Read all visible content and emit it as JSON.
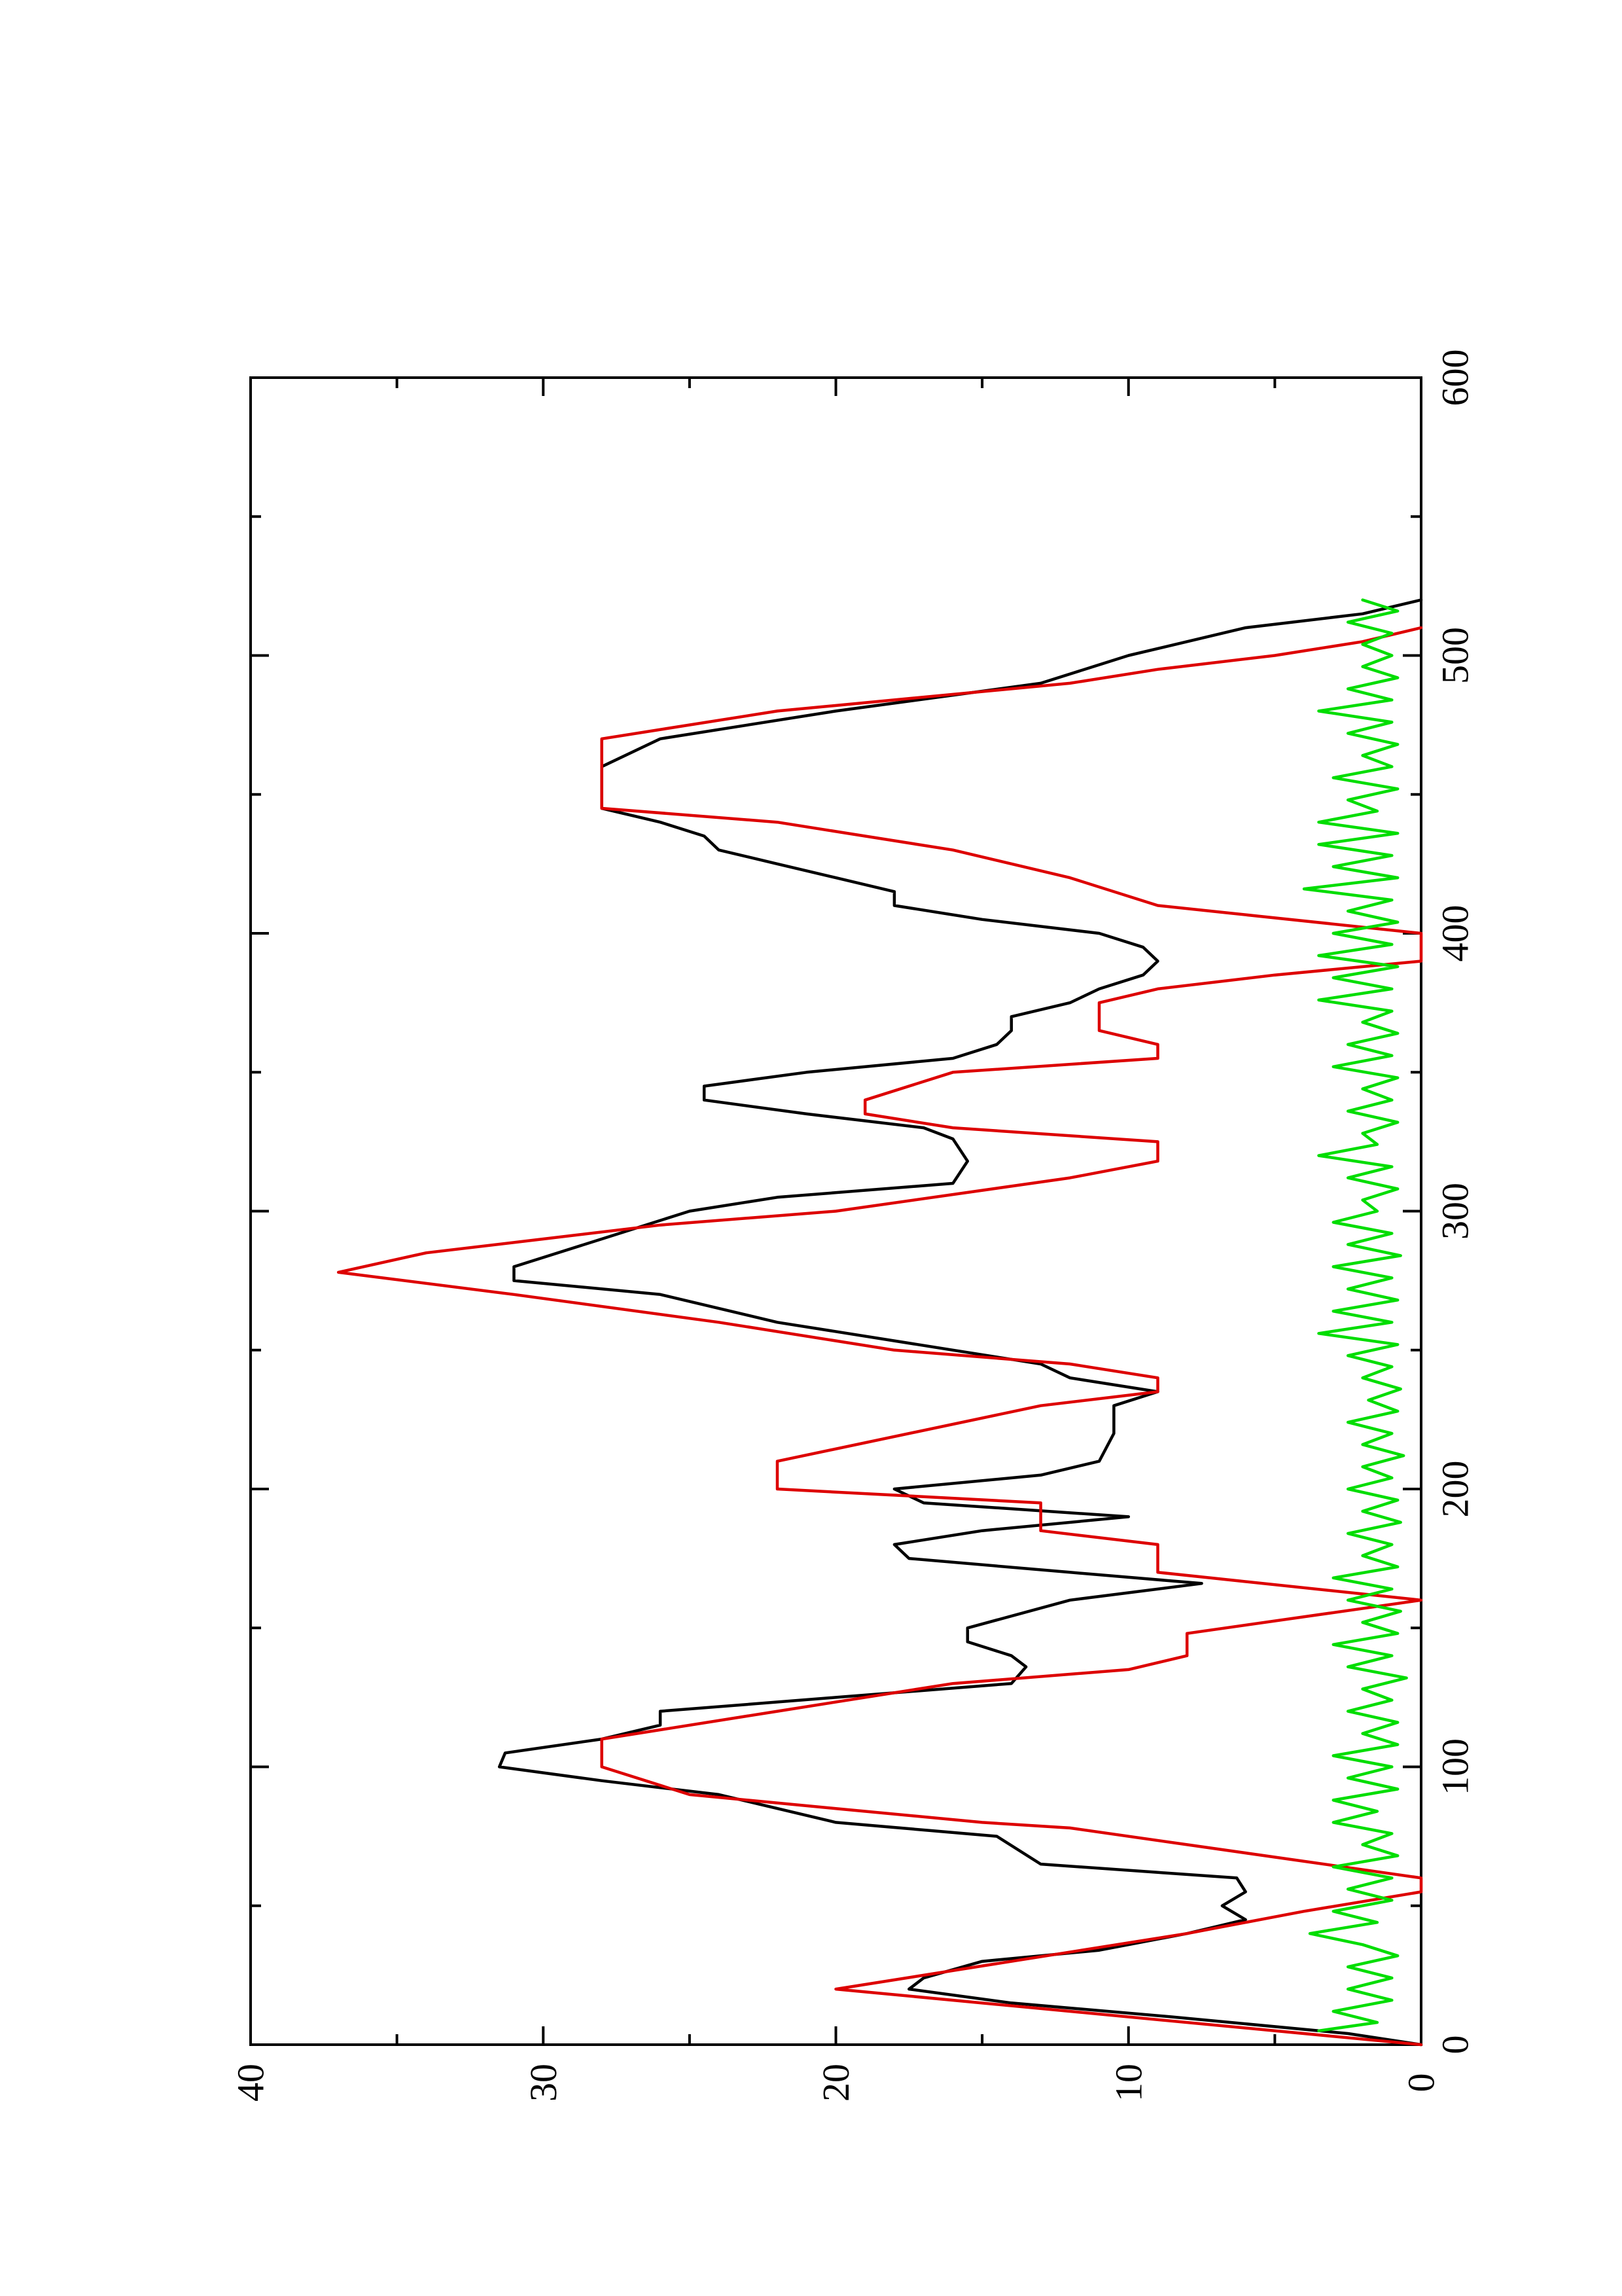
{
  "chart_data": {
    "type": "line",
    "title": "",
    "xlabel": "",
    "ylabel": "",
    "xlim": [
      0,
      600
    ],
    "ylim": [
      0,
      40
    ],
    "grid": false,
    "legend": "none",
    "orientation": "rotated-90-ccw",
    "x_ticks": [
      "0",
      "100",
      "200",
      "300",
      "400",
      "500",
      "600"
    ],
    "y_ticks": [
      "0",
      "10",
      "20",
      "30",
      "40"
    ],
    "colors": {
      "axis": "#000000",
      "series_black": "#000000",
      "series_red": "#dd0000",
      "series_green": "#00dd00"
    },
    "series": [
      {
        "color": "#000000",
        "x": [
          0,
          4,
          10,
          15,
          20,
          24,
          30,
          34,
          40,
          45,
          50,
          55,
          60,
          62,
          65,
          75,
          80,
          90,
          95,
          100,
          105,
          110,
          115,
          120,
          125,
          130,
          136,
          140,
          145,
          150,
          160,
          166,
          170,
          175,
          180,
          185,
          190,
          195,
          200,
          205,
          210,
          220,
          230,
          235,
          240,
          245,
          250,
          260,
          270,
          275,
          280,
          290,
          300,
          305,
          310,
          318,
          326,
          330,
          335,
          340,
          345,
          350,
          355,
          360,
          365,
          370,
          375,
          380,
          385,
          390,
          395,
          400,
          405,
          410,
          415,
          420,
          425,
          430,
          435,
          440,
          445,
          450,
          460,
          470,
          480,
          490,
          500,
          510,
          515,
          520
        ],
        "y": [
          0,
          2.5,
          8.5,
          14,
          17.5,
          17,
          15,
          11,
          8,
          6,
          6.8,
          6,
          6.3,
          9,
          13,
          14.5,
          20,
          24,
          28,
          31.5,
          31.3,
          28,
          26,
          26,
          20,
          14,
          13.5,
          14,
          15.5,
          15.5,
          12,
          7.5,
          12,
          17.5,
          18,
          15,
          10,
          17,
          18,
          13,
          11,
          10.5,
          10.5,
          9,
          12,
          13,
          16,
          22,
          26,
          31,
          31,
          28,
          25,
          22,
          16,
          15.5,
          16,
          17,
          21,
          24.5,
          24.5,
          21,
          16,
          14.5,
          14,
          14,
          12,
          11,
          9.5,
          9,
          9.5,
          11,
          15,
          18,
          18,
          20,
          22,
          24,
          24.5,
          26,
          28,
          28,
          28,
          26,
          20,
          13,
          10,
          6,
          2,
          0
        ]
      },
      {
        "color": "#dd0000",
        "x": [
          0,
          20,
          40,
          48,
          55,
          60,
          72,
          78,
          80,
          85,
          90,
          100,
          110,
          120,
          130,
          135,
          140,
          148,
          160,
          170,
          180,
          185,
          195,
          200,
          210,
          230,
          235,
          240,
          245,
          250,
          260,
          270,
          278,
          285,
          290,
          295,
          300,
          312,
          318,
          325,
          330,
          335,
          340,
          350,
          355,
          360,
          365,
          375,
          380,
          385,
          390,
          400,
          410,
          420,
          430,
          440,
          445,
          450,
          470,
          480,
          490,
          495,
          500,
          505,
          510
        ],
        "y": [
          0,
          20,
          8,
          4,
          0,
          0,
          8,
          12,
          15,
          20,
          25,
          28,
          28,
          22,
          16,
          10,
          8,
          8,
          0,
          9,
          9,
          13,
          13,
          22,
          22,
          13,
          9,
          9,
          12,
          18,
          24,
          31,
          37,
          34,
          30,
          26,
          20,
          12,
          9,
          9,
          16,
          19,
          19,
          16,
          9,
          9,
          11,
          11,
          9,
          5,
          0,
          0,
          9,
          12,
          16,
          22,
          28,
          28,
          28,
          22,
          12,
          9,
          5,
          2,
          0
        ]
      },
      {
        "color": "#00dd00",
        "x": [
          5,
          8,
          12,
          16,
          20,
          24,
          28,
          32,
          36,
          40,
          44,
          48,
          52,
          56,
          60,
          64,
          68,
          72,
          76,
          80,
          84,
          88,
          92,
          96,
          100,
          104,
          108,
          112,
          116,
          120,
          124,
          128,
          132,
          136,
          140,
          144,
          148,
          152,
          156,
          160,
          164,
          168,
          172,
          176,
          180,
          184,
          188,
          192,
          196,
          200,
          204,
          208,
          212,
          216,
          220,
          224,
          228,
          232,
          236,
          240,
          244,
          248,
          252,
          256,
          260,
          264,
          268,
          272,
          276,
          280,
          284,
          288,
          292,
          296,
          300,
          304,
          308,
          312,
          316,
          320,
          324,
          328,
          332,
          336,
          340,
          344,
          348,
          352,
          356,
          360,
          364,
          368,
          372,
          376,
          380,
          384,
          388,
          392,
          396,
          400,
          404,
          408,
          412,
          416,
          420,
          424,
          428,
          432,
          436,
          440,
          444,
          448,
          452,
          456,
          460,
          464,
          468,
          472,
          476,
          480,
          484,
          488,
          492,
          496,
          500,
          504,
          508,
          512,
          516,
          520
        ],
        "y": [
          3.5,
          1.5,
          3,
          1,
          2.5,
          1,
          2.5,
          0.8,
          2,
          3.8,
          1.5,
          3,
          1,
          2.5,
          1,
          3,
          0.8,
          2,
          1,
          3,
          1.5,
          3,
          0.8,
          2.5,
          1,
          3,
          0.8,
          2,
          0.8,
          2.5,
          1,
          2,
          0.5,
          2.5,
          1,
          3,
          0.8,
          2,
          0.7,
          2.5,
          1,
          3,
          0.8,
          2,
          1,
          2.5,
          0.7,
          2,
          0.8,
          2.5,
          1,
          2,
          0.6,
          2,
          1,
          2.5,
          0.8,
          1.8,
          0.7,
          2,
          1,
          2.5,
          0.8,
          3.5,
          1,
          3,
          0.8,
          2.5,
          1,
          3,
          0.7,
          2.5,
          1,
          3,
          1.5,
          2,
          0.8,
          2.5,
          1,
          3.5,
          1.5,
          2,
          0.8,
          2.5,
          1,
          2,
          0.8,
          3,
          1,
          2.5,
          0.8,
          2,
          1,
          3.5,
          1,
          3,
          0.8,
          3.5,
          1,
          3,
          0.8,
          2.5,
          1,
          4,
          0.8,
          3,
          1,
          3.5,
          0.8,
          3.5,
          1.5,
          2.5,
          0.8,
          3,
          1,
          2,
          0.8,
          2.5,
          1,
          3.5,
          1,
          2.5,
          0.8,
          2,
          1,
          2,
          1,
          2.5,
          0.8,
          2
        ]
      }
    ]
  }
}
